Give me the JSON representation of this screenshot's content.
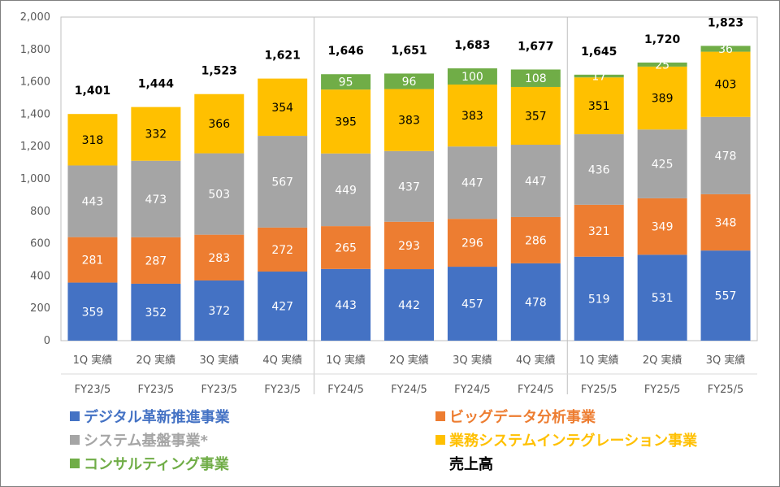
{
  "chart_data": {
    "type": "bar",
    "stacked": true,
    "ylim": [
      0,
      2000
    ],
    "yticks": [
      "0",
      "200",
      "400",
      "600",
      "800",
      "1,000",
      "1,200",
      "1,400",
      "1,600",
      "1,800",
      "2,000"
    ],
    "ytick_values": [
      0,
      200,
      400,
      600,
      800,
      1000,
      1200,
      1400,
      1600,
      1800,
      2000
    ],
    "grid": false,
    "legend_position": "bottom",
    "categories": [
      "1Q 実績",
      "2Q 実績",
      "3Q 実績",
      "4Q 実績",
      "1Q 実績",
      "2Q 実績",
      "3Q 実績",
      "4Q 実績",
      "1Q 実績",
      "2Q 実績",
      "3Q 実績"
    ],
    "groups": [
      "FY23/5",
      "FY23/5",
      "FY23/5",
      "FY23/5",
      "FY24/5",
      "FY24/5",
      "FY24/5",
      "FY24/5",
      "FY25/5",
      "FY25/5",
      "FY25/5"
    ],
    "series": [
      {
        "name": "デジタル革新推進事業",
        "color": "#4472c4",
        "label_color": "#ffffff",
        "values": [
          359,
          352,
          372,
          427,
          443,
          442,
          457,
          478,
          519,
          531,
          557
        ]
      },
      {
        "name": "ビッグデータ分析事業",
        "color": "#ed7d31",
        "label_color": "#ffffff",
        "values": [
          281,
          287,
          283,
          272,
          265,
          293,
          296,
          286,
          321,
          349,
          348
        ]
      },
      {
        "name": "システム基盤事業*",
        "color": "#a5a5a5",
        "label_color": "#ffffff",
        "values": [
          443,
          473,
          503,
          567,
          449,
          437,
          447,
          447,
          436,
          425,
          478
        ]
      },
      {
        "name": "業務システムインテグレーション事業",
        "color": "#ffc000",
        "label_color": "#000000",
        "values": [
          318,
          332,
          366,
          354,
          395,
          383,
          383,
          357,
          351,
          389,
          403
        ]
      },
      {
        "name": "コンサルティング事業",
        "color": "#70ad47",
        "label_color": "#ffffff",
        "values": [
          0,
          0,
          0,
          0,
          95,
          96,
          100,
          108,
          17,
          25,
          36
        ]
      }
    ],
    "totals_name": "売上高",
    "totals": [
      "1,401",
      "1,444",
      "1,523",
      "1,621",
      "1,646",
      "1,651",
      "1,683",
      "1,677",
      "1,645",
      "1,720",
      "1,823"
    ]
  }
}
